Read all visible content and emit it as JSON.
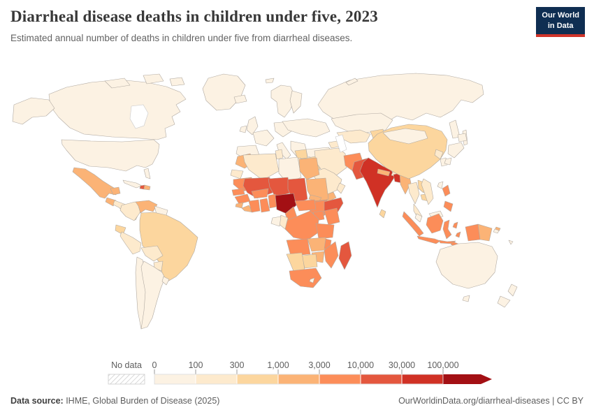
{
  "header": {
    "title": "Diarrheal disease deaths in children under five, 2023",
    "subtitle": "Estimated annual number of deaths in children under five from diarrheal diseases.",
    "logo": {
      "line1": "Our World",
      "line2": "in Data",
      "bg_color": "#0f2e52",
      "accent_color": "#d0342a"
    }
  },
  "legend": {
    "no_data_label": "No data",
    "ticks": [
      "0",
      "100",
      "300",
      "1,000",
      "3,000",
      "10,000",
      "30,000",
      "100,000"
    ]
  },
  "footer": {
    "source_label": "Data source:",
    "source_text": " IHME, Global Burden of Disease (2025)",
    "credit": "OurWorldinData.org/diarrheal-diseases | CC BY"
  },
  "chart_data": {
    "type": "choropleth_map",
    "title": "Diarrheal disease deaths in children under five",
    "year": "2023",
    "metric": "Estimated annual number of deaths in children under five from diarrheal diseases",
    "legend_position": "bottom",
    "color_scale": {
      "no_data_color": "hatched",
      "bins": [
        {
          "label": "0-100",
          "color": "#fcf2e3"
        },
        {
          "label": "100-300",
          "color": "#fdeacd"
        },
        {
          "label": "300-1,000",
          "color": "#fcd69e"
        },
        {
          "label": "1,000-3,000",
          "color": "#fbb376"
        },
        {
          "label": "3,000-10,000",
          "color": "#fc8d59"
        },
        {
          "label": "10,000-30,000",
          "color": "#e4573e"
        },
        {
          "label": "30,000-100,000",
          "color": "#d03125"
        },
        {
          "label": "100,000+",
          "color": "#a31014"
        }
      ]
    },
    "countries": {
      "Canada": "0-100",
      "United States": "0-100",
      "Greenland": "0-100",
      "Mexico": "1,000-3,000",
      "Guatemala": "1,000-3,000",
      "Honduras & Nicaragua": "100-300",
      "Costa Rica & Panama": "100-300",
      "Cuba": "0-100",
      "Haiti": "10,000-30,000",
      "Dominican Republic": "1,000-3,000",
      "Colombia": "100-300",
      "Venezuela": "1,000-3,000",
      "Guyana & Suriname": "0-100",
      "Ecuador": "300-1,000",
      "Peru": "100-300",
      "Brazil": "300-1,000",
      "Bolivia": "100-300",
      "Paraguay": "100-300",
      "Chile": "0-100",
      "Argentina": "0-100",
      "Uruguay": "0-100",
      "Iceland": "0-100",
      "United Kingdom": "0-100",
      "Ireland": "0-100",
      "Norway & Sweden": "0-100",
      "Finland": "0-100",
      "France": "0-100",
      "Spain & Portugal": "0-100",
      "Central Europe": "0-100",
      "Italy": "0-100",
      "Balkans & Greece": "0-100",
      "Poland & Ukraine": "0-100",
      "Turkey": "0-100",
      "Russia": "0-100",
      "Kazakhstan": "0-100",
      "Uzbekistan & Turkmenistan": "100-300",
      "Kyrgyzstan & Tajikistan": "300-1,000",
      "Caucasus": "100-300",
      "Syria": "300-1,000",
      "Iraq": "300-1,000",
      "Iran": "100-300",
      "Saudi Arabia": "100-300",
      "Oman": "100-300",
      "Yemen": "1,000-3,000",
      "Jordan & Israel": "100-300",
      "Afghanistan": "3,000-10,000",
      "Pakistan": "10,000-30,000",
      "India": "30,000-100,000",
      "Nepal": "1,000-3,000",
      "Bhutan": "100-300",
      "Bangladesh": "30,000-100,000",
      "Sri Lanka": "300-1,000",
      "Myanmar": "1,000-3,000",
      "China": "300-1,000",
      "Mongolia": "0-100",
      "North Korea": "100-300",
      "South Korea": "0-100",
      "Japan": "0-100",
      "Taiwan": "0-100",
      "Thailand": "100-300",
      "Laos": "300-1,000",
      "Cambodia": "300-1,000",
      "Vietnam": "100-300",
      "Malaysia": "0-100",
      "Indonesia": "3,000-10,000",
      "Philippines": "3,000-10,000",
      "Papua New Guinea": "1,000-3,000",
      "Australia": "0-100",
      "New Zealand": "0-100",
      "Pacific Islands": "0-100",
      "Morocco": "1,000-3,000",
      "Western Sahara": "100-300",
      "Algeria": "100-300",
      "Tunisia": "100-300",
      "Libya": "0-100",
      "Egypt": "1,000-3,000",
      "Mauritania": "3,000-10,000",
      "Mali": "10,000-30,000",
      "Niger": "10,000-30,000",
      "Chad": "10,000-30,000",
      "Sudan": "1,000-3,000",
      "Eritrea": "1,000-3,000",
      "Djibouti": "1,000-3,000",
      "South Sudan": "3,000-10,000",
      "Ethiopia": "3,000-10,000",
      "Somalia": "10,000-30,000",
      "Senegal": "3,000-10,000",
      "Guinea": "3,000-10,000",
      "Sierra Leone": "1,000-3,000",
      "Liberia": "1,000-3,000",
      "Côte d'Ivoire": "3,000-10,000",
      "Ghana": "3,000-10,000",
      "Togo & Benin": "3,000-10,000",
      "Burkina Faso": "3,000-10,000",
      "Nigeria": "100,000+",
      "Cameroon": "3,000-10,000",
      "Central African Republic": "3,000-10,000",
      "Uganda": "3,000-10,000",
      "Kenya": "3,000-10,000",
      "Rwanda & Burundi": "1,000-3,000",
      "DR Congo": "3,000-10,000",
      "Congo": "100-300",
      "Gabon": "0-100",
      "Tanzania": "3,000-10,000",
      "Angola": "3,000-10,000",
      "Zambia": "1,000-3,000",
      "Malawi": "3,000-10,000",
      "Mozambique": "3,000-10,000",
      "Zimbabwe": "1,000-3,000",
      "Botswana": "300-1,000",
      "Namibia": "300-1,000",
      "South Africa": "3,000-10,000",
      "Lesotho": "0-100",
      "Madagascar": "10,000-30,000"
    }
  }
}
